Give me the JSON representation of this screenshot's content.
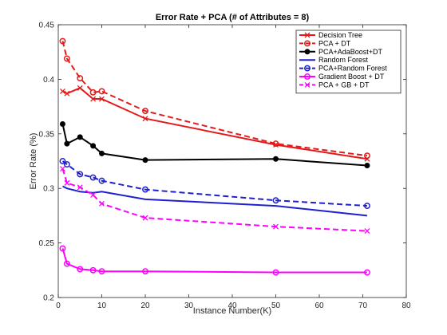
{
  "chart_data": {
    "type": "line",
    "title": "Error Rate + PCA (# of Attributes = 8)",
    "xlabel": "Instance Number(K)",
    "ylabel": "Error Rate (%)",
    "xlim": [
      0,
      80
    ],
    "ylim": [
      0.2,
      0.45
    ],
    "xticks": [
      0,
      10,
      20,
      30,
      40,
      50,
      60,
      70,
      80
    ],
    "yticks": [
      0.2,
      0.25,
      0.3,
      0.35,
      0.4,
      0.45
    ],
    "grid": false,
    "legend_position": "top-right",
    "series": [
      {
        "name": "Decision Tree",
        "color": "#e31a1c",
        "dash": "solid",
        "marker": "x",
        "x": [
          1,
          2,
          5,
          8,
          10,
          20,
          50,
          71
        ],
        "y": [
          0.389,
          0.387,
          0.392,
          0.382,
          0.382,
          0.364,
          0.34,
          0.327
        ]
      },
      {
        "name": "PCA + DT",
        "color": "#e31a1c",
        "dash": "dashed",
        "marker": "o",
        "x": [
          1,
          2,
          5,
          8,
          10,
          20,
          50,
          71
        ],
        "y": [
          0.435,
          0.419,
          0.401,
          0.388,
          0.389,
          0.371,
          0.341,
          0.33
        ]
      },
      {
        "name": "PCA+AdaBoost+DT",
        "color": "#000000",
        "dash": "solid",
        "marker": "dot",
        "x": [
          1,
          2,
          5,
          8,
          10,
          20,
          50,
          71
        ],
        "y": [
          0.359,
          0.341,
          0.347,
          0.339,
          0.332,
          0.326,
          0.327,
          0.321
        ]
      },
      {
        "name": "Random Forest",
        "color": "#1f1fcf",
        "dash": "solid",
        "marker": "none",
        "x": [
          1,
          2,
          5,
          8,
          10,
          20,
          50,
          71
        ],
        "y": [
          0.302,
          0.3,
          0.297,
          0.296,
          0.297,
          0.29,
          0.284,
          0.275
        ]
      },
      {
        "name": "PCA+Random Forest",
        "color": "#1f1fcf",
        "dash": "dashed",
        "marker": "o",
        "x": [
          1,
          2,
          5,
          8,
          10,
          20,
          50,
          71
        ],
        "y": [
          0.325,
          0.322,
          0.313,
          0.31,
          0.307,
          0.299,
          0.289,
          0.284
        ]
      },
      {
        "name": "Gradient Boost + DT",
        "color": "#ff00ff",
        "dash": "solid",
        "marker": "o",
        "x": [
          1,
          2,
          5,
          8,
          10,
          20,
          50,
          71
        ],
        "y": [
          0.245,
          0.231,
          0.226,
          0.225,
          0.224,
          0.224,
          0.223,
          0.223
        ]
      },
      {
        "name": "PCA + GB + DT",
        "color": "#ff00ff",
        "dash": "dashed",
        "marker": "x",
        "x": [
          1,
          2,
          5,
          8,
          10,
          20,
          50,
          71
        ],
        "y": [
          0.318,
          0.305,
          0.301,
          0.294,
          0.286,
          0.273,
          0.265,
          0.261
        ]
      }
    ]
  }
}
